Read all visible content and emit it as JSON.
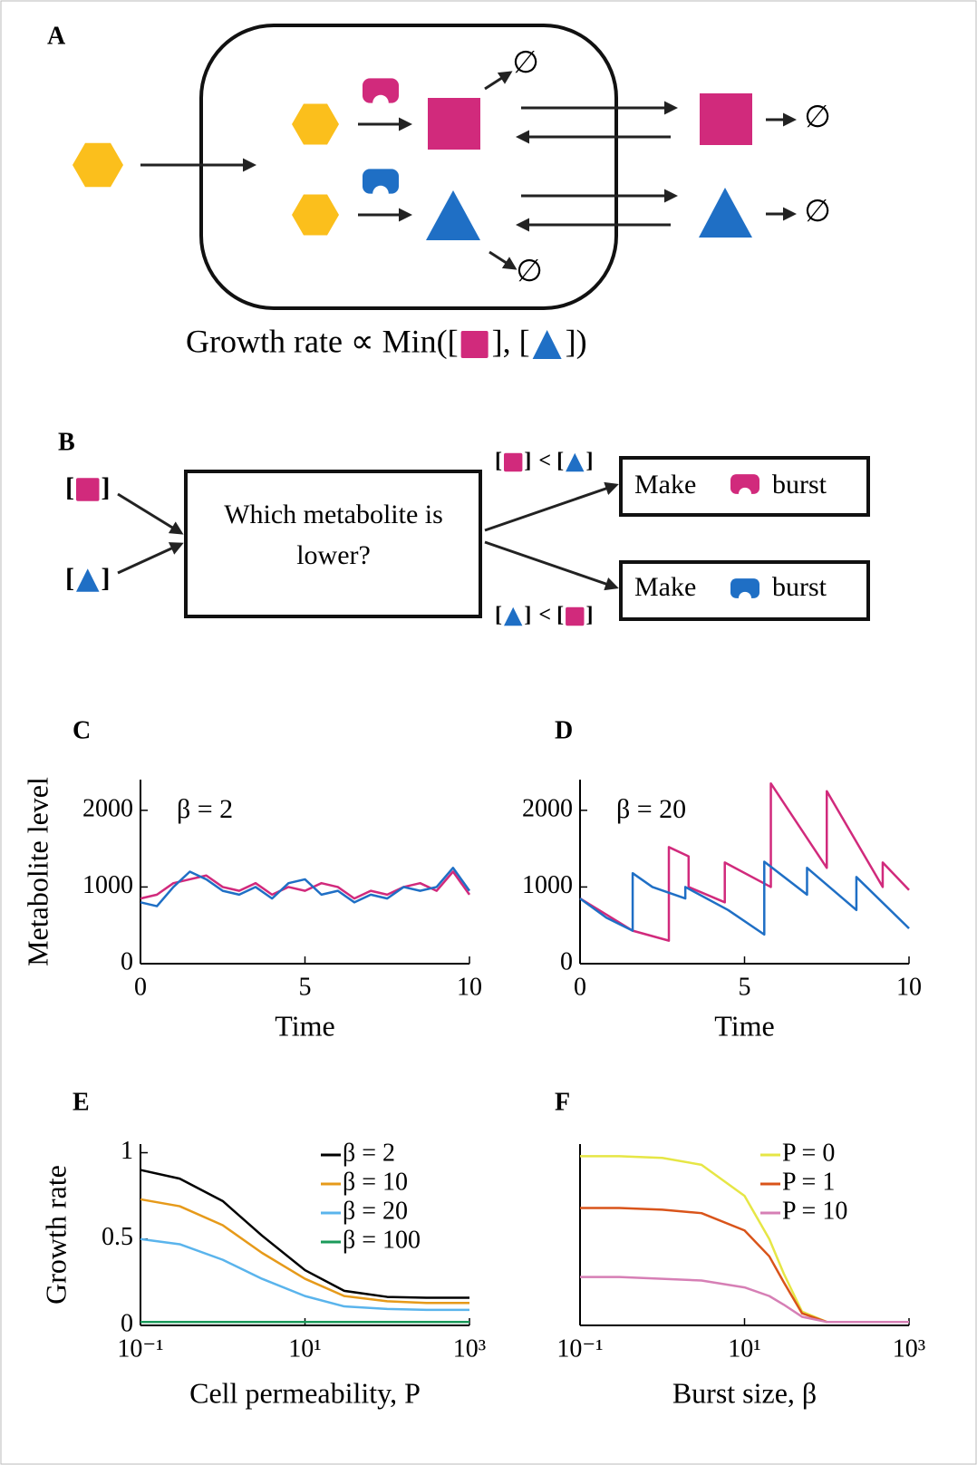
{
  "diagram_a": {
    "label": "A",
    "null_symbol": "∅",
    "caption_parts": [
      "Growth rate ∝ Min([",
      "], [",
      "])"
    ]
  },
  "diagram_b": {
    "label": "B",
    "open": "[",
    "close": "]",
    "less_than": "<",
    "decision_lines": [
      "Which metabolite is",
      "lower?"
    ],
    "make": "Make",
    "burst": "burst"
  },
  "chart_data": [
    {
      "type": "line",
      "label": "C",
      "ylabel": "Metabolite level",
      "xlabel": "Time",
      "annotation": "β = 2",
      "xlim": [
        0,
        10
      ],
      "xticks": [
        0,
        5,
        10
      ],
      "ylim": [
        0,
        2400
      ],
      "yticks": [
        0,
        1000,
        2000
      ],
      "x": [
        0,
        0.5,
        1,
        1.5,
        2,
        2.5,
        3,
        3.5,
        4,
        4.5,
        5,
        5.5,
        6,
        6.5,
        7,
        7.5,
        8,
        8.5,
        9,
        9.5,
        10
      ],
      "series": [
        {
          "color": "#d12a7c",
          "values": [
            850,
            900,
            1050,
            1100,
            1150,
            1000,
            950,
            1050,
            900,
            1000,
            950,
            1050,
            1000,
            850,
            950,
            900,
            1000,
            1050,
            950,
            1200,
            900
          ]
        },
        {
          "color": "#1f6fc5",
          "values": [
            800,
            750,
            1000,
            1200,
            1100,
            950,
            900,
            1000,
            850,
            1050,
            1100,
            900,
            950,
            800,
            900,
            850,
            1000,
            950,
            1000,
            1250,
            950
          ]
        }
      ]
    },
    {
      "type": "line",
      "label": "D",
      "xlabel": "Time",
      "annotation": "β = 20",
      "xlim": [
        0,
        10
      ],
      "xticks": [
        0,
        5,
        10
      ],
      "ylim": [
        0,
        2400
      ],
      "yticks": [
        0,
        1000,
        2000
      ],
      "series": [
        {
          "color": "#d12a7c",
          "x": [
            0,
            1.6,
            2.7,
            2.7,
            3.3,
            3.3,
            4.4,
            4.4,
            5.8,
            5.8,
            7.5,
            7.5,
            9.2,
            9.2,
            10
          ],
          "values": [
            850,
            430,
            300,
            1520,
            1400,
            1000,
            800,
            1320,
            1000,
            2350,
            1250,
            2250,
            1000,
            1320,
            960
          ]
        },
        {
          "color": "#1f6fc5",
          "x": [
            0,
            0.8,
            1.6,
            1.6,
            2.2,
            3.2,
            3.2,
            4.5,
            5.6,
            5.6,
            6.9,
            6.9,
            8.4,
            8.4,
            10
          ],
          "values": [
            850,
            600,
            430,
            1180,
            1000,
            850,
            1000,
            700,
            380,
            1330,
            900,
            1250,
            700,
            1130,
            460
          ]
        }
      ]
    },
    {
      "type": "line",
      "label": "E",
      "ylabel": "Growth rate",
      "xlabel": "Cell permeability, P",
      "xscale": "log",
      "legend": "upper right",
      "xlim": [
        0.1,
        1000
      ],
      "xticks": [
        {
          "value": 0.1,
          "label": "10⁻¹"
        },
        {
          "value": 10,
          "label": "10¹"
        },
        {
          "value": 1000,
          "label": "10³"
        }
      ],
      "ylim": [
        0,
        1.05
      ],
      "yticks": [
        0,
        0.5,
        1
      ],
      "x": [
        0.1,
        0.3,
        1,
        3,
        10,
        30,
        100,
        300,
        1000
      ],
      "series": [
        {
          "name": "β = 2",
          "color": "#000000",
          "values": [
            0.9,
            0.85,
            0.72,
            0.52,
            0.32,
            0.2,
            0.165,
            0.16,
            0.16
          ]
        },
        {
          "name": "β = 10",
          "color": "#e69a1a",
          "values": [
            0.73,
            0.69,
            0.58,
            0.42,
            0.27,
            0.17,
            0.14,
            0.13,
            0.13
          ]
        },
        {
          "name": "β = 20",
          "color": "#5ab4ec",
          "values": [
            0.5,
            0.47,
            0.38,
            0.27,
            0.17,
            0.11,
            0.095,
            0.09,
            0.09
          ]
        },
        {
          "name": "β = 100",
          "color": "#1a9a5a",
          "values": [
            0.02,
            0.02,
            0.02,
            0.02,
            0.02,
            0.02,
            0.02,
            0.02,
            0.02
          ]
        }
      ]
    },
    {
      "type": "line",
      "label": "F",
      "xlabel": "Burst size, β",
      "xscale": "log",
      "legend": "upper right",
      "xlim": [
        0.1,
        1000
      ],
      "xticks": [
        {
          "value": 0.1,
          "label": "10⁻¹"
        },
        {
          "value": 10,
          "label": "10¹"
        },
        {
          "value": 1000,
          "label": "10³"
        }
      ],
      "ylim": [
        0,
        1.05
      ],
      "x": [
        0.1,
        0.3,
        1,
        3,
        10,
        20,
        30,
        50,
        100,
        1000
      ],
      "series": [
        {
          "name": "P = 0",
          "color": "#e6e645",
          "values": [
            0.98,
            0.98,
            0.97,
            0.93,
            0.75,
            0.5,
            0.3,
            0.08,
            0.02,
            0.02
          ]
        },
        {
          "name": "P = 1",
          "color": "#d9541a",
          "values": [
            0.68,
            0.68,
            0.67,
            0.65,
            0.55,
            0.4,
            0.25,
            0.07,
            0.02,
            0.02
          ]
        },
        {
          "name": "P = 10",
          "color": "#d67fb5",
          "values": [
            0.28,
            0.28,
            0.27,
            0.26,
            0.22,
            0.17,
            0.12,
            0.05,
            0.02,
            0.02
          ]
        }
      ]
    }
  ]
}
